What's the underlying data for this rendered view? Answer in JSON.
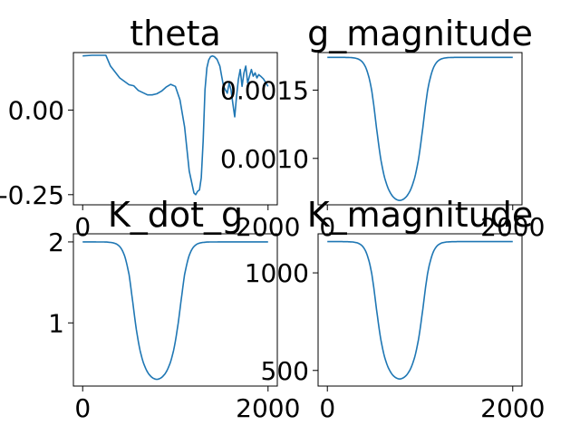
{
  "figure": {
    "background": "#ffffff",
    "line_color": "#1f77b4"
  },
  "chart_data": [
    {
      "id": "theta",
      "type": "line",
      "title": "theta",
      "xlim": [
        -100,
        2100
      ],
      "ylim": [
        -0.28,
        0.17
      ],
      "xticks": [
        {
          "value": 0,
          "label": "0"
        },
        {
          "value": 2000,
          "label": "2000"
        }
      ],
      "yticks": [
        {
          "value": 0.0,
          "label": "0.00"
        },
        {
          "value": -0.25,
          "label": "-0.25"
        }
      ],
      "x": [
        0,
        100,
        200,
        250,
        300,
        400,
        500,
        550,
        600,
        700,
        750,
        800,
        850,
        900,
        950,
        1000,
        1050,
        1100,
        1150,
        1200,
        1220,
        1240,
        1260,
        1280,
        1300,
        1320,
        1340,
        1360,
        1380,
        1400,
        1420,
        1450,
        1480,
        1500,
        1520,
        1540,
        1560,
        1580,
        1600,
        1620,
        1640,
        1660,
        1680,
        1700,
        1720,
        1740,
        1760,
        1780,
        1800,
        1820,
        1840,
        1860,
        1880,
        1900,
        1920,
        1950,
        2000
      ],
      "values": [
        0.16,
        0.162,
        0.162,
        0.162,
        0.13,
        0.095,
        0.075,
        0.072,
        0.058,
        0.045,
        0.045,
        0.048,
        0.056,
        0.068,
        0.076,
        0.07,
        0.03,
        -0.05,
        -0.18,
        -0.245,
        -0.25,
        -0.24,
        -0.236,
        -0.2,
        -0.09,
        0.06,
        0.125,
        0.148,
        0.158,
        0.16,
        0.158,
        0.15,
        0.13,
        0.1,
        0.07,
        0.06,
        0.05,
        0.08,
        0.06,
        0.02,
        -0.02,
        0.04,
        0.09,
        0.12,
        0.07,
        0.11,
        0.13,
        0.08,
        0.1,
        0.12,
        0.1,
        0.11,
        0.095,
        0.105,
        0.1,
        0.092,
        0.07
      ]
    },
    {
      "id": "g_magnitude",
      "type": "line",
      "title": "g_magnitude",
      "xlim": [
        -100,
        2100
      ],
      "ylim": [
        0.00066,
        0.001775
      ],
      "xticks": [
        {
          "value": 0,
          "label": "0"
        },
        {
          "value": 2000,
          "label": "2000"
        }
      ],
      "yticks": [
        {
          "value": 0.0015,
          "label": "0.0015"
        },
        {
          "value": 0.001,
          "label": "0.0010"
        }
      ],
      "shape": {
        "low": 0.00069,
        "high": 0.00174,
        "center": 780,
        "halfwidth": 300,
        "sharpness": 14
      }
    },
    {
      "id": "K_dot_g",
      "type": "line",
      "title": "K_dot_g",
      "xlim": [
        -100,
        2100
      ],
      "ylim": [
        0.22,
        2.1
      ],
      "xticks": [
        {
          "value": 0,
          "label": "0"
        },
        {
          "value": 2000,
          "label": "2000"
        }
      ],
      "yticks": [
        {
          "value": 2,
          "label": "2"
        },
        {
          "value": 1,
          "label": "1"
        }
      ],
      "shape": {
        "low": 0.3,
        "high": 2.0,
        "center": 800,
        "halfwidth": 300,
        "sharpness": 14
      }
    },
    {
      "id": "K_magnitude",
      "type": "line",
      "title": "K_magnitude",
      "xlim": [
        -100,
        2100
      ],
      "ylim": [
        420,
        1200
      ],
      "xticks": [
        {
          "value": 0,
          "label": "0"
        },
        {
          "value": 2000,
          "label": "2000"
        }
      ],
      "yticks": [
        {
          "value": 1000,
          "label": "1000"
        },
        {
          "value": 500,
          "label": "500"
        }
      ],
      "shape": {
        "low": 455,
        "high": 1160,
        "center": 780,
        "halfwidth": 300,
        "sharpness": 14
      }
    }
  ]
}
